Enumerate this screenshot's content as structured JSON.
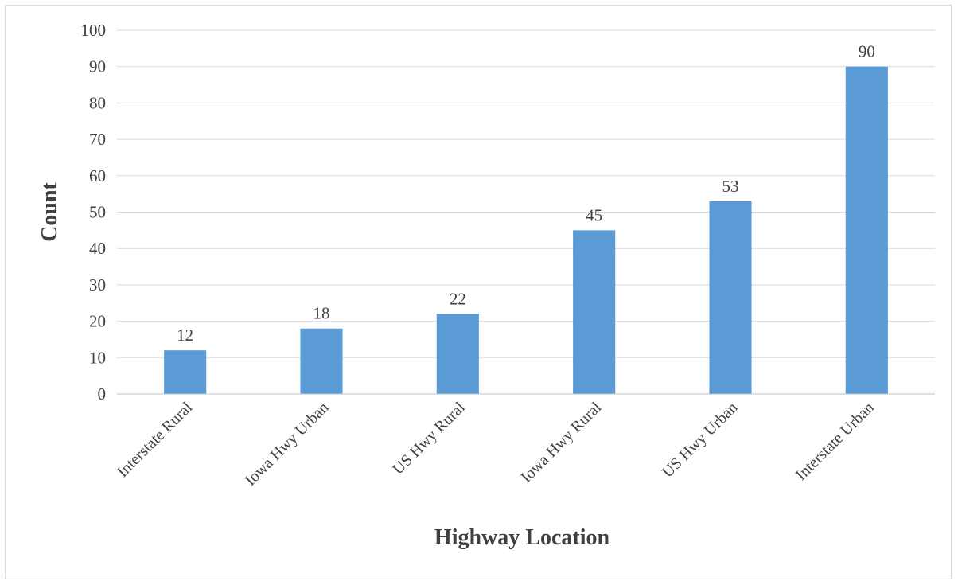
{
  "chart_data": {
    "type": "bar",
    "categories": [
      "Interstate Rural",
      "Iowa Hwy Urban",
      "US Hwy Rural",
      "Iowa Hwy Rural",
      "US Hwy Urban",
      "Interstate Urban"
    ],
    "values": [
      12,
      18,
      22,
      45,
      53,
      90
    ],
    "data_labels": [
      "12",
      "18",
      "22",
      "45",
      "53",
      "90"
    ],
    "title": "",
    "xlabel": "Highway Location",
    "ylabel": "Count",
    "ylim": [
      0,
      100
    ],
    "ytick_step": 10,
    "yticks": [
      "0",
      "10",
      "20",
      "30",
      "40",
      "50",
      "60",
      "70",
      "80",
      "90",
      "100"
    ],
    "grid": true,
    "legend": "none",
    "bar_color": "#5b9bd5"
  }
}
